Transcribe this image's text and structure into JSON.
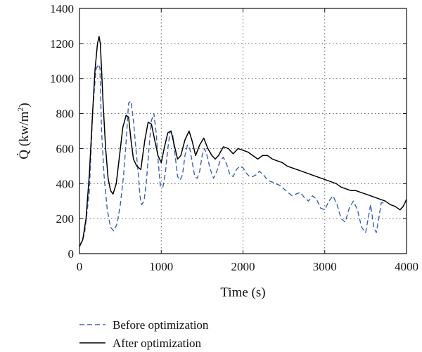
{
  "chart_data": {
    "type": "line",
    "title": "",
    "xlabel": "Time (s)",
    "ylabel": "Q̇ (kw/m²)",
    "ylabel_parts": {
      "main": "Q̇ (kw/m",
      "sup": "2",
      "close": ")"
    },
    "xlim": [
      0,
      4000
    ],
    "ylim": [
      0,
      1400
    ],
    "xticks": [
      0,
      1000,
      2000,
      3000,
      4000
    ],
    "yticks": [
      0,
      200,
      400,
      600,
      800,
      1000,
      1200,
      1400
    ],
    "grid": true,
    "legend_position": "bottom",
    "series": [
      {
        "name": "Before optimization",
        "color": "#3b5fb8",
        "style": "dashed",
        "x": [
          0,
          60,
          120,
          160,
          200,
          230,
          250,
          270,
          300,
          340,
          380,
          420,
          460,
          500,
          540,
          570,
          600,
          630,
          660,
          690,
          720,
          740,
          760,
          790,
          820,
          850,
          880,
          910,
          940,
          960,
          990,
          1020,
          1050,
          1080,
          1110,
          1140,
          1170,
          1200,
          1230,
          1260,
          1290,
          1320,
          1350,
          1380,
          1410,
          1440,
          1470,
          1500,
          1530,
          1560,
          1600,
          1640,
          1680,
          1720,
          1760,
          1800,
          1840,
          1880,
          1920,
          1960,
          2000,
          2040,
          2080,
          2120,
          2160,
          2200,
          2250,
          2300,
          2350,
          2400,
          2450,
          2500,
          2550,
          2600,
          2650,
          2700,
          2750,
          2800,
          2850,
          2900,
          2950,
          3000,
          3050,
          3100,
          3150,
          3200,
          3250,
          3300,
          3350,
          3400,
          3450,
          3500,
          3530,
          3560,
          3600,
          3630,
          3660,
          3690,
          3720
        ],
        "y": [
          40,
          110,
          350,
          800,
          1050,
          1080,
          1060,
          700,
          450,
          250,
          150,
          130,
          170,
          280,
          450,
          640,
          860,
          870,
          760,
          600,
          450,
          330,
          280,
          300,
          420,
          600,
          760,
          800,
          680,
          540,
          380,
          380,
          460,
          600,
          700,
          680,
          560,
          440,
          420,
          450,
          560,
          620,
          600,
          520,
          440,
          430,
          470,
          560,
          600,
          560,
          480,
          430,
          470,
          530,
          550,
          510,
          450,
          440,
          480,
          500,
          490,
          460,
          440,
          440,
          450,
          470,
          450,
          420,
          410,
          400,
          390,
          370,
          350,
          330,
          340,
          350,
          320,
          300,
          330,
          310,
          260,
          250,
          300,
          330,
          280,
          200,
          180,
          260,
          300,
          250,
          150,
          120,
          200,
          280,
          150,
          120,
          200,
          290,
          290
        ]
      },
      {
        "name": "After optimization",
        "color": "#000000",
        "style": "solid",
        "x": [
          0,
          40,
          80,
          120,
          160,
          190,
          220,
          240,
          255,
          270,
          290,
          320,
          350,
          380,
          410,
          450,
          490,
          530,
          570,
          600,
          630,
          660,
          700,
          750,
          800,
          840,
          880,
          920,
          960,
          1000,
          1040,
          1080,
          1120,
          1160,
          1200,
          1240,
          1290,
          1340,
          1380,
          1420,
          1470,
          1520,
          1570,
          1620,
          1660,
          1700,
          1760,
          1820,
          1880,
          1940,
          2000,
          2060,
          2120,
          2180,
          2240,
          2300,
          2360,
          2420,
          2480,
          2540,
          2600,
          2660,
          2720,
          2780,
          2840,
          2900,
          2960,
          3020,
          3080,
          3140,
          3200,
          3260,
          3320,
          3380,
          3440,
          3500,
          3560,
          3620,
          3680,
          3740,
          3800,
          3860,
          3920,
          3960,
          4000
        ],
        "y": [
          40,
          80,
          200,
          450,
          800,
          1050,
          1200,
          1240,
          1200,
          1050,
          850,
          600,
          430,
          360,
          340,
          400,
          560,
          720,
          790,
          780,
          650,
          540,
          500,
          480,
          650,
          750,
          740,
          650,
          560,
          520,
          610,
          690,
          700,
          620,
          540,
          560,
          650,
          700,
          640,
          560,
          620,
          660,
          600,
          560,
          540,
          560,
          610,
          600,
          570,
          600,
          590,
          580,
          560,
          540,
          560,
          560,
          540,
          530,
          520,
          500,
          490,
          480,
          470,
          460,
          450,
          440,
          430,
          420,
          410,
          400,
          380,
          370,
          360,
          360,
          350,
          340,
          330,
          320,
          310,
          300,
          280,
          270,
          250,
          270,
          310
        ]
      }
    ]
  }
}
